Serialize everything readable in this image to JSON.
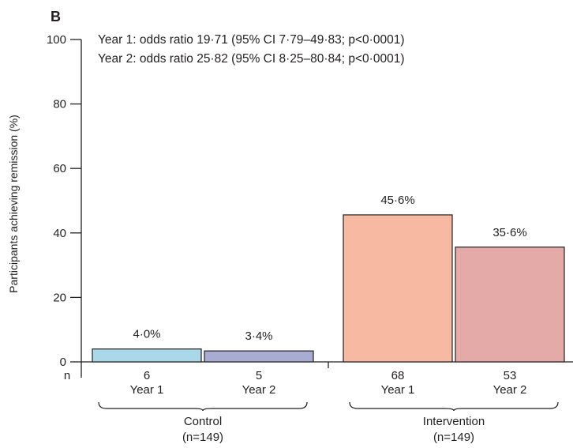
{
  "chart_data": {
    "type": "bar",
    "panel_label": "B",
    "ylabel": "Participants achieving remission (%)",
    "ylim": [
      0,
      100
    ],
    "yticks": [
      "0",
      "20",
      "40",
      "60",
      "80",
      "100"
    ],
    "n_axis_label": "n",
    "annotations": [
      "Year 1: odds ratio 19·71 (95% CI 7·79–49·83; p<0·0001)",
      "Year 2: odds ratio 25·82 (95% CI 8·25–80·84; p<0·0001)"
    ],
    "groups": [
      {
        "label": "Control",
        "n_total": "(n=149)",
        "bars": [
          {
            "category": "Year 1",
            "n": "6",
            "value": 4.0,
            "label": "4·0%",
            "color": "#a9d8e8"
          },
          {
            "category": "Year 2",
            "n": "5",
            "value": 3.4,
            "label": "3·4%",
            "color": "#a8acd2"
          }
        ]
      },
      {
        "label": "Intervention",
        "n_total": "(n=149)",
        "bars": [
          {
            "category": "Year 1",
            "n": "68",
            "value": 45.6,
            "label": "45·6%",
            "color": "#f8b9a3"
          },
          {
            "category": "Year 2",
            "n": "53",
            "value": 35.6,
            "label": "35·6%",
            "color": "#e3aaa8"
          }
        ]
      }
    ]
  }
}
